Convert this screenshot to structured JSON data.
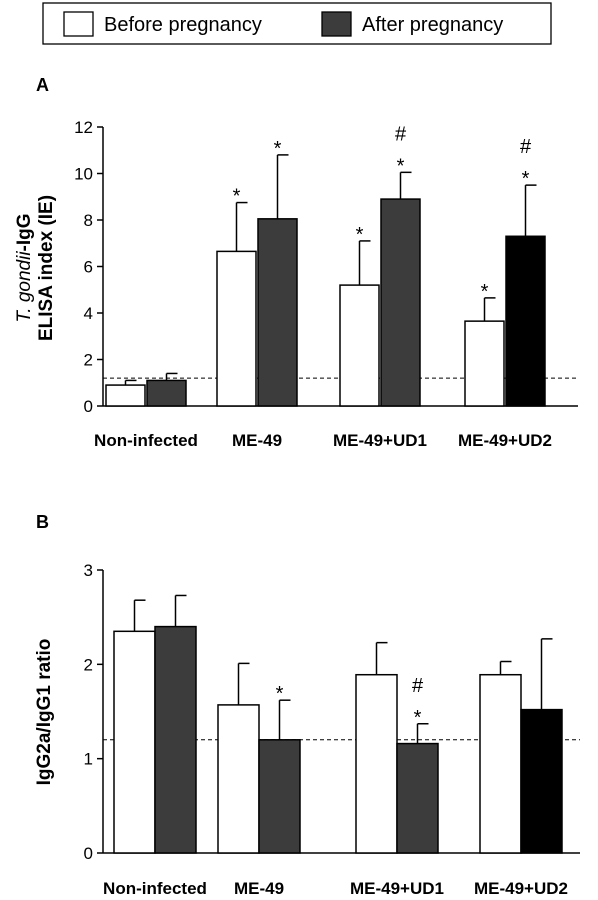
{
  "legend": {
    "entries": [
      {
        "label": "Before pregnancy",
        "color": "#ffffff"
      },
      {
        "label": "After pregnancy",
        "color": "#3c3c3c"
      }
    ]
  },
  "chart_data": [
    {
      "type": "bar",
      "panel_label": "A",
      "ylabel": {
        "line1_italic": "T. gondii",
        "line1_rest": "-IgG",
        "line2": "ELISA index (IE)"
      },
      "ylim": [
        0,
        12
      ],
      "yticks": [
        "0",
        "2",
        "4",
        "6",
        "8",
        "10",
        "12"
      ],
      "categories": [
        "Non-infected",
        "ME-49",
        "ME-49+UD1",
        "ME-49+UD2"
      ],
      "series": [
        {
          "name": "Before pregnancy",
          "values": [
            0.9,
            6.65,
            5.2,
            3.65
          ],
          "errors": [
            0.2,
            2.1,
            1.9,
            1.0
          ],
          "colors": [
            "#ffffff",
            "#ffffff",
            "#ffffff",
            "#ffffff"
          ]
        },
        {
          "name": "After pregnancy",
          "values": [
            1.1,
            8.05,
            8.9,
            7.3
          ],
          "errors": [
            0.3,
            2.75,
            1.15,
            2.2
          ],
          "colors": [
            "#3c3c3c",
            "#3c3c3c",
            "#3c3c3c",
            "#000000"
          ]
        }
      ],
      "annotations": [
        {
          "category": 1,
          "series": 0,
          "text": "*"
        },
        {
          "category": 1,
          "series": 1,
          "text": "*"
        },
        {
          "category": 2,
          "series": 0,
          "text": "*"
        },
        {
          "category": 2,
          "series": 1,
          "text": "*"
        },
        {
          "category": 2,
          "series": 1,
          "text": "#"
        },
        {
          "category": 3,
          "series": 0,
          "text": "*"
        },
        {
          "category": 3,
          "series": 1,
          "text": "*"
        },
        {
          "category": 3,
          "series": 1,
          "text": "#"
        }
      ],
      "reference_line": 1.2
    },
    {
      "type": "bar",
      "panel_label": "B",
      "ylabel": {
        "line1": "IgG2a/IgG1 ratio"
      },
      "ylim": [
        0,
        3
      ],
      "yticks": [
        "0",
        "1",
        "2",
        "3"
      ],
      "categories": [
        "Non-infected",
        "ME-49",
        "ME-49+UD1",
        "ME-49+UD2"
      ],
      "series": [
        {
          "name": "Before pregnancy",
          "values": [
            2.35,
            1.57,
            1.89,
            1.89
          ],
          "errors": [
            0.33,
            0.44,
            0.34,
            0.14
          ],
          "colors": [
            "#ffffff",
            "#ffffff",
            "#ffffff",
            "#ffffff"
          ]
        },
        {
          "name": "After pregnancy",
          "values": [
            2.4,
            1.2,
            1.16,
            1.52
          ],
          "errors": [
            0.33,
            0.42,
            0.21,
            0.75
          ],
          "colors": [
            "#3c3c3c",
            "#3c3c3c",
            "#3c3c3c",
            "#000000"
          ]
        }
      ],
      "annotations": [
        {
          "category": 1,
          "series": 1,
          "text": "*"
        },
        {
          "category": 2,
          "series": 1,
          "text": "*"
        },
        {
          "category": 2,
          "series": 1,
          "text": "#"
        }
      ],
      "reference_line": 1.2
    }
  ]
}
